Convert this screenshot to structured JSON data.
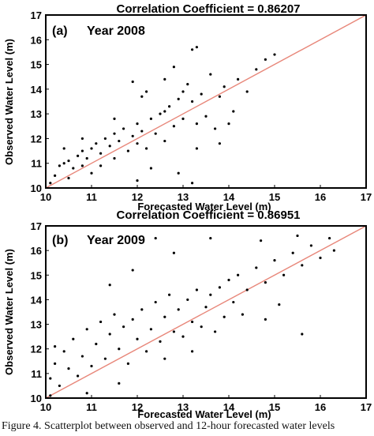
{
  "caption": "Figure 4. Scatterplot between observed and 12-hour forecasted water levels",
  "colors": {
    "points": "#000000",
    "fit_line": "#e8877a",
    "frame": "#000000"
  },
  "chart_data": [
    {
      "type": "scatter",
      "title": "Correlation Coefficient = 0.86207",
      "panel_label": "(a)",
      "year_label": "Year 2008",
      "xlabel": "Forecasted Water Level (m)",
      "ylabel": "Observed Water Level (m)",
      "xlim": [
        10,
        17
      ],
      "ylim": [
        10,
        17
      ],
      "xticks": [
        10,
        11,
        12,
        13,
        14,
        15,
        16,
        17
      ],
      "yticks": [
        10,
        11,
        12,
        13,
        14,
        15,
        16,
        17
      ],
      "reference_line": {
        "x": [
          10,
          17
        ],
        "y": [
          10,
          17
        ]
      },
      "series": [
        {
          "points": [
            [
              10.1,
              10.2
            ],
            [
              10.2,
              10.5
            ],
            [
              10.3,
              10.9
            ],
            [
              10.4,
              11.0
            ],
            [
              10.5,
              11.1
            ],
            [
              10.5,
              10.4
            ],
            [
              10.6,
              10.8
            ],
            [
              10.7,
              11.3
            ],
            [
              10.8,
              11.5
            ],
            [
              10.8,
              10.9
            ],
            [
              10.9,
              11.2
            ],
            [
              11.0,
              11.6
            ],
            [
              11.0,
              10.6
            ],
            [
              11.1,
              11.8
            ],
            [
              11.2,
              11.4
            ],
            [
              11.2,
              10.9
            ],
            [
              11.3,
              12.0
            ],
            [
              11.4,
              11.7
            ],
            [
              11.5,
              11.2
            ],
            [
              11.5,
              12.2
            ],
            [
              11.6,
              11.9
            ],
            [
              11.7,
              12.4
            ],
            [
              11.8,
              11.5
            ],
            [
              11.9,
              12.1
            ],
            [
              12.0,
              11.8
            ],
            [
              12.0,
              12.6
            ],
            [
              12.1,
              12.3
            ],
            [
              12.2,
              11.6
            ],
            [
              12.3,
              12.8
            ],
            [
              12.4,
              12.2
            ],
            [
              12.5,
              13.0
            ],
            [
              12.6,
              11.9
            ],
            [
              12.7,
              13.3
            ],
            [
              12.8,
              12.5
            ],
            [
              12.9,
              13.6
            ],
            [
              13.0,
              13.9
            ],
            [
              13.0,
              12.8
            ],
            [
              13.1,
              14.2
            ],
            [
              13.2,
              13.5
            ],
            [
              13.3,
              12.6
            ],
            [
              13.4,
              13.8
            ],
            [
              13.5,
              12.9
            ],
            [
              13.6,
              14.6
            ],
            [
              13.7,
              12.4
            ],
            [
              13.8,
              13.7
            ],
            [
              13.9,
              14.1
            ],
            [
              14.0,
              12.6
            ],
            [
              14.2,
              14.4
            ],
            [
              14.4,
              13.9
            ],
            [
              14.6,
              14.8
            ],
            [
              14.8,
              15.2
            ],
            [
              15.0,
              15.4
            ],
            [
              13.3,
              15.7
            ],
            [
              13.2,
              15.6
            ],
            [
              12.8,
              14.9
            ],
            [
              12.6,
              14.4
            ],
            [
              12.2,
              13.9
            ],
            [
              11.5,
              12.8
            ],
            [
              10.8,
              12.0
            ],
            [
              10.4,
              11.6
            ],
            [
              12.0,
              10.3
            ],
            [
              12.3,
              10.8
            ],
            [
              12.9,
              10.6
            ],
            [
              13.2,
              10.2
            ],
            [
              13.3,
              11.6
            ],
            [
              11.9,
              14.3
            ],
            [
              12.1,
              13.7
            ],
            [
              13.8,
              11.8
            ],
            [
              14.1,
              13.1
            ],
            [
              12.6,
              13.1
            ]
          ]
        }
      ]
    },
    {
      "type": "scatter",
      "title": "Correlation Coefficient = 0.86951",
      "panel_label": "(b)",
      "year_label": "Year 2009",
      "xlabel": "Forecasted Water Level (m)",
      "ylabel": "Observed Water Level (m)",
      "xlim": [
        10,
        17
      ],
      "ylim": [
        10,
        17
      ],
      "xticks": [
        10,
        11,
        12,
        13,
        14,
        15,
        16,
        17
      ],
      "yticks": [
        10,
        11,
        12,
        13,
        14,
        15,
        16,
        17
      ],
      "reference_line": {
        "x": [
          10,
          17
        ],
        "y": [
          10,
          17
        ]
      },
      "series": [
        {
          "points": [
            [
              10.1,
              10.1
            ],
            [
              10.1,
              10.8
            ],
            [
              10.2,
              11.4
            ],
            [
              10.2,
              12.1
            ],
            [
              10.3,
              10.5
            ],
            [
              10.4,
              11.9
            ],
            [
              10.5,
              11.2
            ],
            [
              10.6,
              12.4
            ],
            [
              10.7,
              10.9
            ],
            [
              10.8,
              11.7
            ],
            [
              10.9,
              12.8
            ],
            [
              11.0,
              11.3
            ],
            [
              11.1,
              12.2
            ],
            [
              11.2,
              13.1
            ],
            [
              11.3,
              11.6
            ],
            [
              11.4,
              12.6
            ],
            [
              11.5,
              13.4
            ],
            [
              11.6,
              12.0
            ],
            [
              11.7,
              12.9
            ],
            [
              11.8,
              11.4
            ],
            [
              11.9,
              13.2
            ],
            [
              12.0,
              12.4
            ],
            [
              12.1,
              13.6
            ],
            [
              12.2,
              11.9
            ],
            [
              12.3,
              12.8
            ],
            [
              12.4,
              13.9
            ],
            [
              12.5,
              12.3
            ],
            [
              12.6,
              13.3
            ],
            [
              12.7,
              14.2
            ],
            [
              12.8,
              12.7
            ],
            [
              12.9,
              13.6
            ],
            [
              13.0,
              12.5
            ],
            [
              13.1,
              14.0
            ],
            [
              13.2,
              13.1
            ],
            [
              13.3,
              14.4
            ],
            [
              13.4,
              12.9
            ],
            [
              13.5,
              13.7
            ],
            [
              13.6,
              14.2
            ],
            [
              13.7,
              12.7
            ],
            [
              13.8,
              14.5
            ],
            [
              13.9,
              13.3
            ],
            [
              14.0,
              14.8
            ],
            [
              14.1,
              13.9
            ],
            [
              14.2,
              15.0
            ],
            [
              14.4,
              14.4
            ],
            [
              14.6,
              15.3
            ],
            [
              14.8,
              14.7
            ],
            [
              15.0,
              15.6
            ],
            [
              15.2,
              15.0
            ],
            [
              15.4,
              15.9
            ],
            [
              15.6,
              15.4
            ],
            [
              15.8,
              16.2
            ],
            [
              16.0,
              15.7
            ],
            [
              16.2,
              16.5
            ],
            [
              16.3,
              16.0
            ],
            [
              15.5,
              16.6
            ],
            [
              14.7,
              16.4
            ],
            [
              13.6,
              16.5
            ],
            [
              12.4,
              16.5
            ],
            [
              12.8,
              15.9
            ],
            [
              11.9,
              15.2
            ],
            [
              11.4,
              14.6
            ],
            [
              14.3,
              13.4
            ],
            [
              14.8,
              13.2
            ],
            [
              15.1,
              13.8
            ],
            [
              15.6,
              12.6
            ],
            [
              12.6,
              11.6
            ],
            [
              11.6,
              10.6
            ],
            [
              10.9,
              10.2
            ],
            [
              13.2,
              11.9
            ]
          ]
        }
      ]
    }
  ]
}
